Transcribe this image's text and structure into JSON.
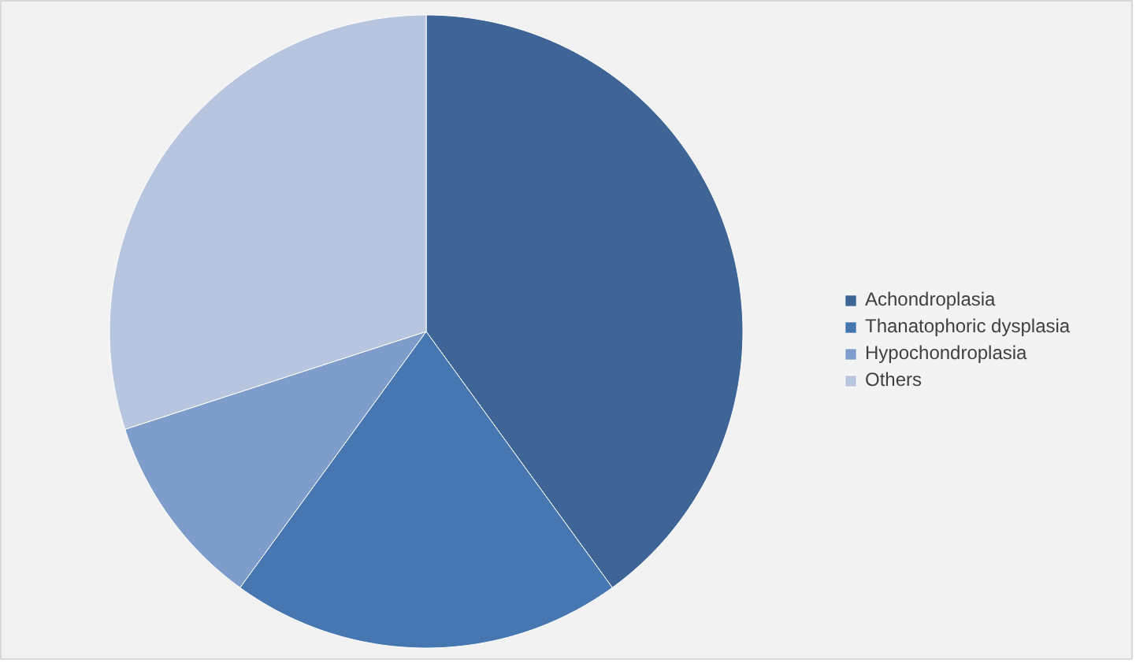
{
  "chart_data": {
    "type": "pie",
    "categories": [
      "Achondroplasia",
      "Thanatophoric dysplasia",
      "Hypochondroplasia",
      "Others"
    ],
    "values": [
      40,
      20,
      10,
      30
    ],
    "colors": [
      "#3f6496",
      "#4677b0",
      "#7f9dca",
      "#b7c5de"
    ],
    "legend": "right"
  }
}
